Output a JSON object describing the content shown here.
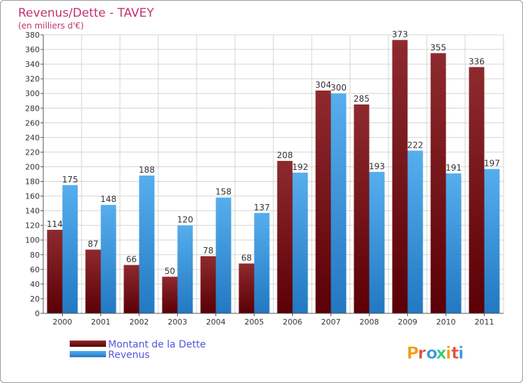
{
  "chart_data": {
    "type": "bar",
    "title": "Revenus/Dette - TAVEY",
    "subtitle": "(en milliers d'€)",
    "categories": [
      "2000",
      "2001",
      "2002",
      "2003",
      "2004",
      "2005",
      "2006",
      "2007",
      "2008",
      "2009",
      "2010",
      "2011"
    ],
    "series": [
      {
        "name": "Montant de la Dette",
        "values": [
          114,
          87,
          66,
          50,
          78,
          68,
          208,
          304,
          285,
          373,
          355,
          336
        ],
        "color": "#6b0f12"
      },
      {
        "name": "Revenus",
        "values": [
          175,
          148,
          188,
          120,
          158,
          137,
          192,
          300,
          193,
          222,
          191,
          197
        ],
        "color": "#3a97dd"
      }
    ],
    "ylim": [
      0,
      380
    ],
    "yticks": [
      0,
      20,
      40,
      60,
      80,
      100,
      120,
      140,
      160,
      180,
      200,
      220,
      240,
      260,
      280,
      300,
      320,
      340,
      360,
      380
    ],
    "grid": true,
    "legend_position": "bottom-left"
  },
  "brand": {
    "text": "Proxiti",
    "colors": [
      "#f39c12",
      "#e84c3d",
      "#3a97dd",
      "#2ecc71"
    ]
  },
  "colors": {
    "title": "#c0326d",
    "legend_text": "#5555dd"
  }
}
